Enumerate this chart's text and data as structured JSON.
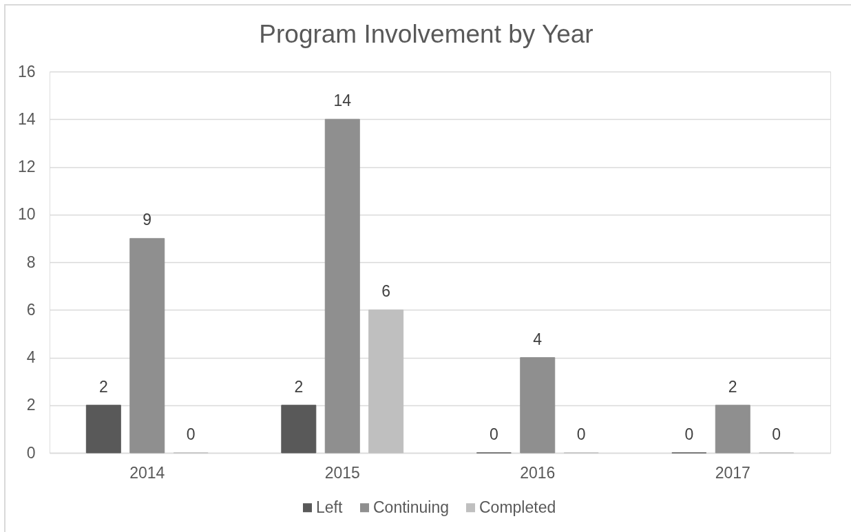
{
  "chart_data": {
    "type": "bar",
    "title": "Program Involvement by Year",
    "categories": [
      "2014",
      "2015",
      "2016",
      "2017"
    ],
    "series": [
      {
        "name": "Left",
        "color": "#595959",
        "values": [
          2,
          2,
          0,
          0
        ]
      },
      {
        "name": "Continuing",
        "color": "#8f8f8f",
        "values": [
          9,
          14,
          4,
          2
        ]
      },
      {
        "name": "Completed",
        "color": "#bfbfbf",
        "values": [
          0,
          6,
          0,
          0
        ]
      }
    ],
    "ylim": [
      0,
      16
    ],
    "yticks": [
      0,
      2,
      4,
      6,
      8,
      10,
      12,
      14,
      16
    ],
    "grid": "y",
    "legend": "bottom",
    "data_labels": true
  }
}
